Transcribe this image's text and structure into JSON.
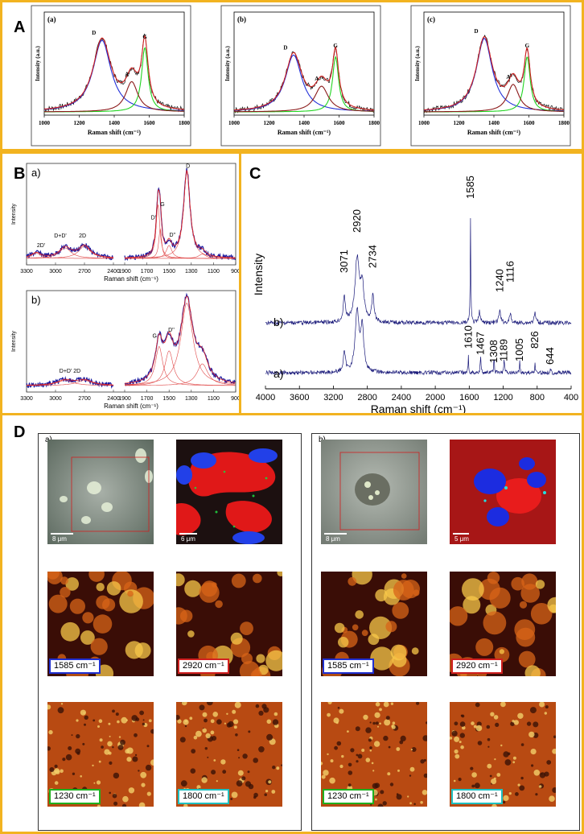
{
  "panels": {
    "A": "A",
    "B": "B",
    "C": "C",
    "D": "D"
  },
  "colors": {
    "frame": "#f2b320",
    "D": "#2230d8",
    "G": "#22d422",
    "A": "#8b1a1a",
    "fit": "#d02020",
    "data": "#111111",
    "spectrum": "#1a1a7a"
  },
  "chart_data": [
    {
      "type": "line",
      "id": "A-a",
      "subplot": "(a)",
      "xlabel": "Raman shift (cm⁻¹)",
      "ylabel": "Intensity (a.u.)",
      "xlim": [
        1000,
        1800
      ],
      "xticks": [
        1000,
        1200,
        1400,
        1600,
        1800
      ],
      "series": [
        {
          "name": "D",
          "center": 1330,
          "height": 0.78,
          "width": 125
        },
        {
          "name": "G",
          "center": 1575,
          "height": 0.7,
          "width": 45
        },
        {
          "name": "A",
          "center": 1500,
          "height": 0.33,
          "width": 85
        }
      ]
    },
    {
      "type": "line",
      "id": "A-b",
      "subplot": "(b)",
      "xlabel": "Raman shift (cm⁻¹)",
      "ylabel": "Intensity (a.u.)",
      "xlim": [
        1000,
        1800
      ],
      "xticks": [
        1000,
        1200,
        1400,
        1600,
        1800
      ],
      "series": [
        {
          "name": "D",
          "center": 1340,
          "height": 0.62,
          "width": 115
        },
        {
          "name": "G",
          "center": 1580,
          "height": 0.6,
          "width": 42
        },
        {
          "name": "A",
          "center": 1500,
          "height": 0.28,
          "width": 95
        }
      ]
    },
    {
      "type": "line",
      "id": "A-c",
      "subplot": "(c)",
      "xlabel": "Raman shift (cm⁻¹)",
      "ylabel": "Intensity (a.u.)",
      "xlim": [
        1000,
        1800
      ],
      "xticks": [
        1000,
        1200,
        1400,
        1600,
        1800
      ],
      "series": [
        {
          "name": "D",
          "center": 1345,
          "height": 0.8,
          "width": 110
        },
        {
          "name": "G",
          "center": 1590,
          "height": 0.6,
          "width": 42
        },
        {
          "name": "A",
          "center": 1510,
          "height": 0.3,
          "width": 80
        }
      ]
    },
    {
      "type": "line",
      "id": "B-a",
      "subplot": "a)",
      "xlabel": "Raman shift (cm⁻¹)",
      "ylabel": "Intensity",
      "xticks": [
        3300,
        3000,
        2700,
        2400,
        1900,
        1700,
        1500,
        1300,
        1100,
        900
      ],
      "peak_labels": [
        "2D'",
        "D+D'",
        "2D",
        "D'",
        "G",
        "D''",
        "D"
      ]
    },
    {
      "type": "line",
      "id": "B-b",
      "subplot": "b)",
      "xlabel": "Raman shift (cm⁻¹)",
      "ylabel": "Intensity",
      "xticks": [
        3300,
        3000,
        2700,
        2400,
        1900,
        1700,
        1500,
        1300,
        1100,
        900
      ],
      "peak_labels": [
        "D+D' 2D",
        "G",
        "D''"
      ]
    },
    {
      "type": "line",
      "id": "C",
      "xlabel": "Raman shift (cm⁻¹)",
      "ylabel": "Intensity",
      "xlim": [
        4000,
        400
      ],
      "xticks": [
        4000,
        3600,
        3200,
        2800,
        2400,
        2000,
        1600,
        1200,
        800,
        400
      ],
      "series": [
        {
          "name": "b)",
          "peaks": [
            3071,
            2920,
            2734,
            1585,
            1240,
            1116
          ]
        },
        {
          "name": "a)",
          "peaks": [
            1610,
            1467,
            1308,
            1189,
            1005,
            826,
            644
          ]
        }
      ],
      "peak_labels_b": [
        "3071",
        "2920",
        "2734",
        "1585",
        "1240",
        "1116"
      ],
      "peak_labels_a": [
        "1610",
        "1467",
        "1308",
        "1189",
        "1005",
        "826",
        "644"
      ]
    }
  ],
  "panelD": {
    "a": {
      "label": "a)",
      "scale_optical": "8 μm",
      "scale_map": "6 μm"
    },
    "b": {
      "label": "b)",
      "scale_optical": "8 μm",
      "scale_map": "5 μm"
    },
    "captions": [
      {
        "text": "1585 cm⁻¹",
        "color": "#1f2fd0"
      },
      {
        "text": "2920 cm⁻¹",
        "color": "#d01f1f"
      },
      {
        "text": "1230 cm⁻¹",
        "color": "#1fb01f"
      },
      {
        "text": "1800 cm⁻¹",
        "color": "#1fc0c0"
      }
    ]
  }
}
